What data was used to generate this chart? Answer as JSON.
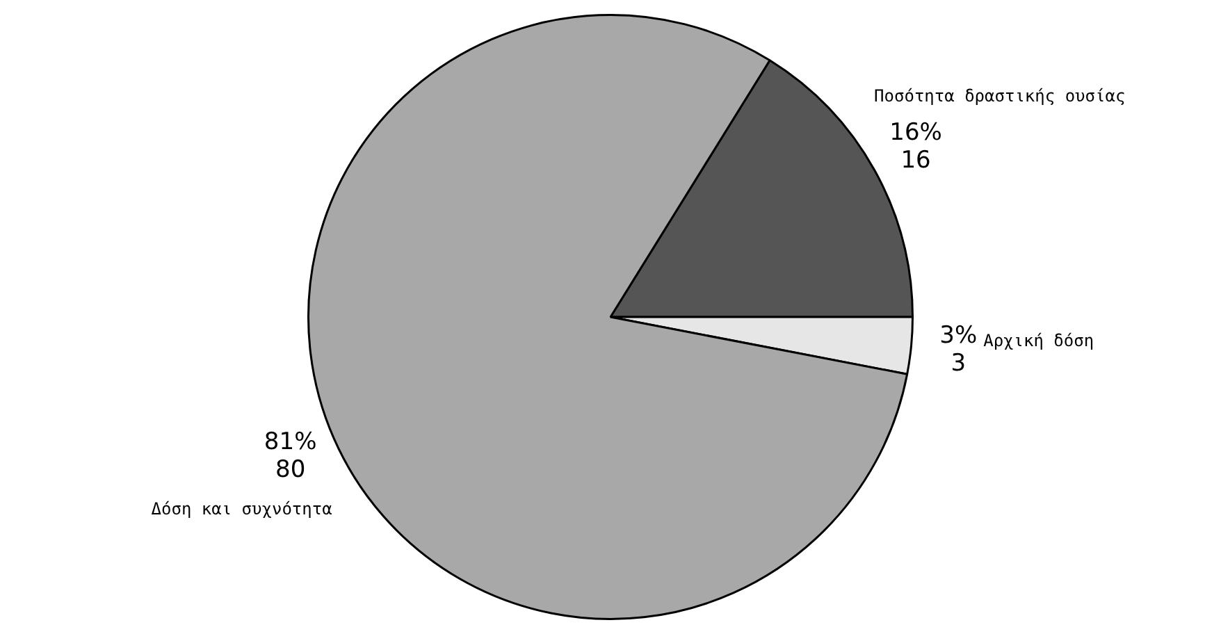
{
  "chart_data": {
    "type": "pie",
    "categories": [
      "Ποσότητα δραστικής ουσίας",
      "Αρχική δόση",
      "Δόση και συχνότητα"
    ],
    "values": [
      16,
      3,
      80
    ],
    "colors": [
      "#555555",
      "#e6e6e6",
      "#a8a8a8"
    ],
    "value_labels": [
      "16%\n16",
      "3%\n3",
      "81%\n80"
    ],
    "legend": false
  }
}
